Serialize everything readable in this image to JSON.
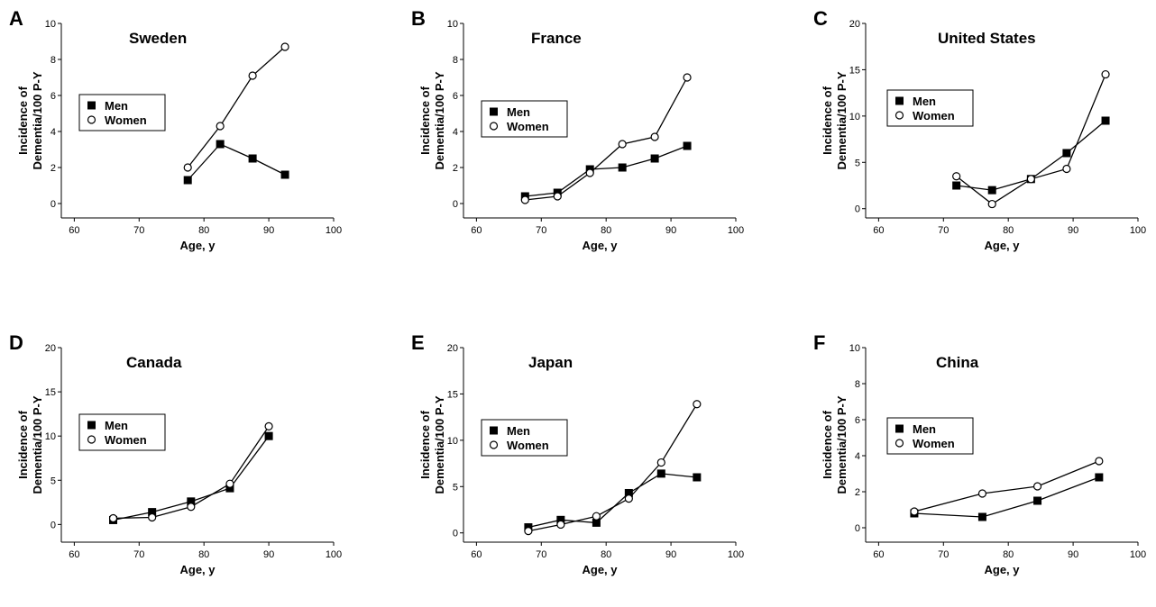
{
  "chart_data": [
    {
      "letter": "A",
      "title": "Sweden",
      "type": "line",
      "xlabel": "Age, y",
      "ylabel": [
        "Incidence of",
        "Dementia/100 P-Y"
      ],
      "xlim": [
        58,
        100
      ],
      "xticks": [
        60,
        70,
        80,
        90,
        100
      ],
      "ylim": [
        -0.8,
        10
      ],
      "yticks": [
        0,
        2,
        4,
        6,
        8,
        10
      ],
      "series": [
        {
          "name": "Men",
          "marker": "square",
          "x": [
            77.5,
            82.5,
            87.5,
            92.5
          ],
          "y": [
            1.3,
            3.3,
            2.5,
            1.6
          ]
        },
        {
          "name": "Women",
          "marker": "circle",
          "x": [
            77.5,
            82.5,
            87.5,
            92.5
          ],
          "y": [
            2.0,
            4.3,
            7.1,
            8.7
          ]
        }
      ]
    },
    {
      "letter": "B",
      "title": "France",
      "type": "line",
      "xlabel": "Age, y",
      "ylabel": [
        "Incidence of",
        "Dementia/100 P-Y"
      ],
      "xlim": [
        58,
        100
      ],
      "xticks": [
        60,
        70,
        80,
        90,
        100
      ],
      "ylim": [
        -0.8,
        10
      ],
      "yticks": [
        0,
        2,
        4,
        6,
        8,
        10
      ],
      "series": [
        {
          "name": "Men",
          "marker": "square",
          "x": [
            67.5,
            72.5,
            77.5,
            82.5,
            87.5,
            92.5
          ],
          "y": [
            0.4,
            0.6,
            1.9,
            2.0,
            2.5,
            3.2
          ]
        },
        {
          "name": "Women",
          "marker": "circle",
          "x": [
            67.5,
            72.5,
            77.5,
            82.5,
            87.5,
            92.5
          ],
          "y": [
            0.2,
            0.4,
            1.7,
            3.3,
            3.7,
            7.0
          ]
        }
      ]
    },
    {
      "letter": "C",
      "title": "United States",
      "type": "line",
      "xlabel": "Age, y",
      "ylabel": [
        "Incidence of",
        "Dementia/100 P-Y"
      ],
      "xlim": [
        58,
        100
      ],
      "xticks": [
        60,
        70,
        80,
        90,
        100
      ],
      "ylim": [
        -1,
        20
      ],
      "yticks": [
        0,
        5,
        10,
        15,
        20
      ],
      "series": [
        {
          "name": "Men",
          "marker": "square",
          "x": [
            72,
            77.5,
            83.5,
            89,
            95
          ],
          "y": [
            2.5,
            2.0,
            3.2,
            6.0,
            9.5
          ]
        },
        {
          "name": "Women",
          "marker": "circle",
          "x": [
            72,
            77.5,
            83.5,
            89,
            95
          ],
          "y": [
            3.5,
            0.5,
            3.2,
            4.3,
            14.5
          ]
        }
      ]
    },
    {
      "letter": "D",
      "title": "Canada",
      "type": "line",
      "xlabel": "Age, y",
      "ylabel": [
        "Incidence of",
        "Dementia/100 P-Y"
      ],
      "xlim": [
        58,
        100
      ],
      "xticks": [
        60,
        70,
        80,
        90,
        100
      ],
      "ylim": [
        -2,
        20
      ],
      "yticks": [
        0,
        5,
        10,
        15,
        20
      ],
      "series": [
        {
          "name": "Men",
          "marker": "square",
          "x": [
            66,
            72,
            78,
            84,
            90
          ],
          "y": [
            0.5,
            1.4,
            2.6,
            4.1,
            10.0
          ]
        },
        {
          "name": "Women",
          "marker": "circle",
          "x": [
            66,
            72,
            78,
            84,
            90
          ],
          "y": [
            0.7,
            0.8,
            2.0,
            4.6,
            11.1
          ]
        }
      ]
    },
    {
      "letter": "E",
      "title": "Japan",
      "type": "line",
      "xlabel": "Age, y",
      "ylabel": [
        "Incidence of",
        "Dementia/100 P-Y"
      ],
      "xlim": [
        58,
        100
      ],
      "xticks": [
        60,
        70,
        80,
        90,
        100
      ],
      "ylim": [
        -1,
        20
      ],
      "yticks": [
        0,
        5,
        10,
        15,
        20
      ],
      "series": [
        {
          "name": "Men",
          "marker": "square",
          "x": [
            68,
            73,
            78.5,
            83.5,
            88.5,
            94
          ],
          "y": [
            0.6,
            1.4,
            1.1,
            4.3,
            6.4,
            6.0
          ]
        },
        {
          "name": "Women",
          "marker": "circle",
          "x": [
            68,
            73,
            78.5,
            83.5,
            88.5,
            94
          ],
          "y": [
            0.2,
            0.9,
            1.8,
            3.7,
            7.6,
            13.9
          ]
        }
      ]
    },
    {
      "letter": "F",
      "title": "China",
      "type": "line",
      "xlabel": "Age, y",
      "ylabel": [
        "Incidence of",
        "Dementia/100 P-Y"
      ],
      "xlim": [
        58,
        100
      ],
      "xticks": [
        60,
        70,
        80,
        90,
        100
      ],
      "ylim": [
        -0.8,
        10
      ],
      "yticks": [
        0,
        2,
        4,
        6,
        8,
        10
      ],
      "series": [
        {
          "name": "Men",
          "marker": "square",
          "x": [
            65.5,
            76,
            84.5,
            94
          ],
          "y": [
            0.8,
            0.6,
            1.5,
            2.8
          ]
        },
        {
          "name": "Women",
          "marker": "circle",
          "x": [
            65.5,
            76,
            84.5,
            94
          ],
          "y": [
            0.9,
            1.9,
            2.3,
            3.7
          ]
        }
      ]
    }
  ]
}
